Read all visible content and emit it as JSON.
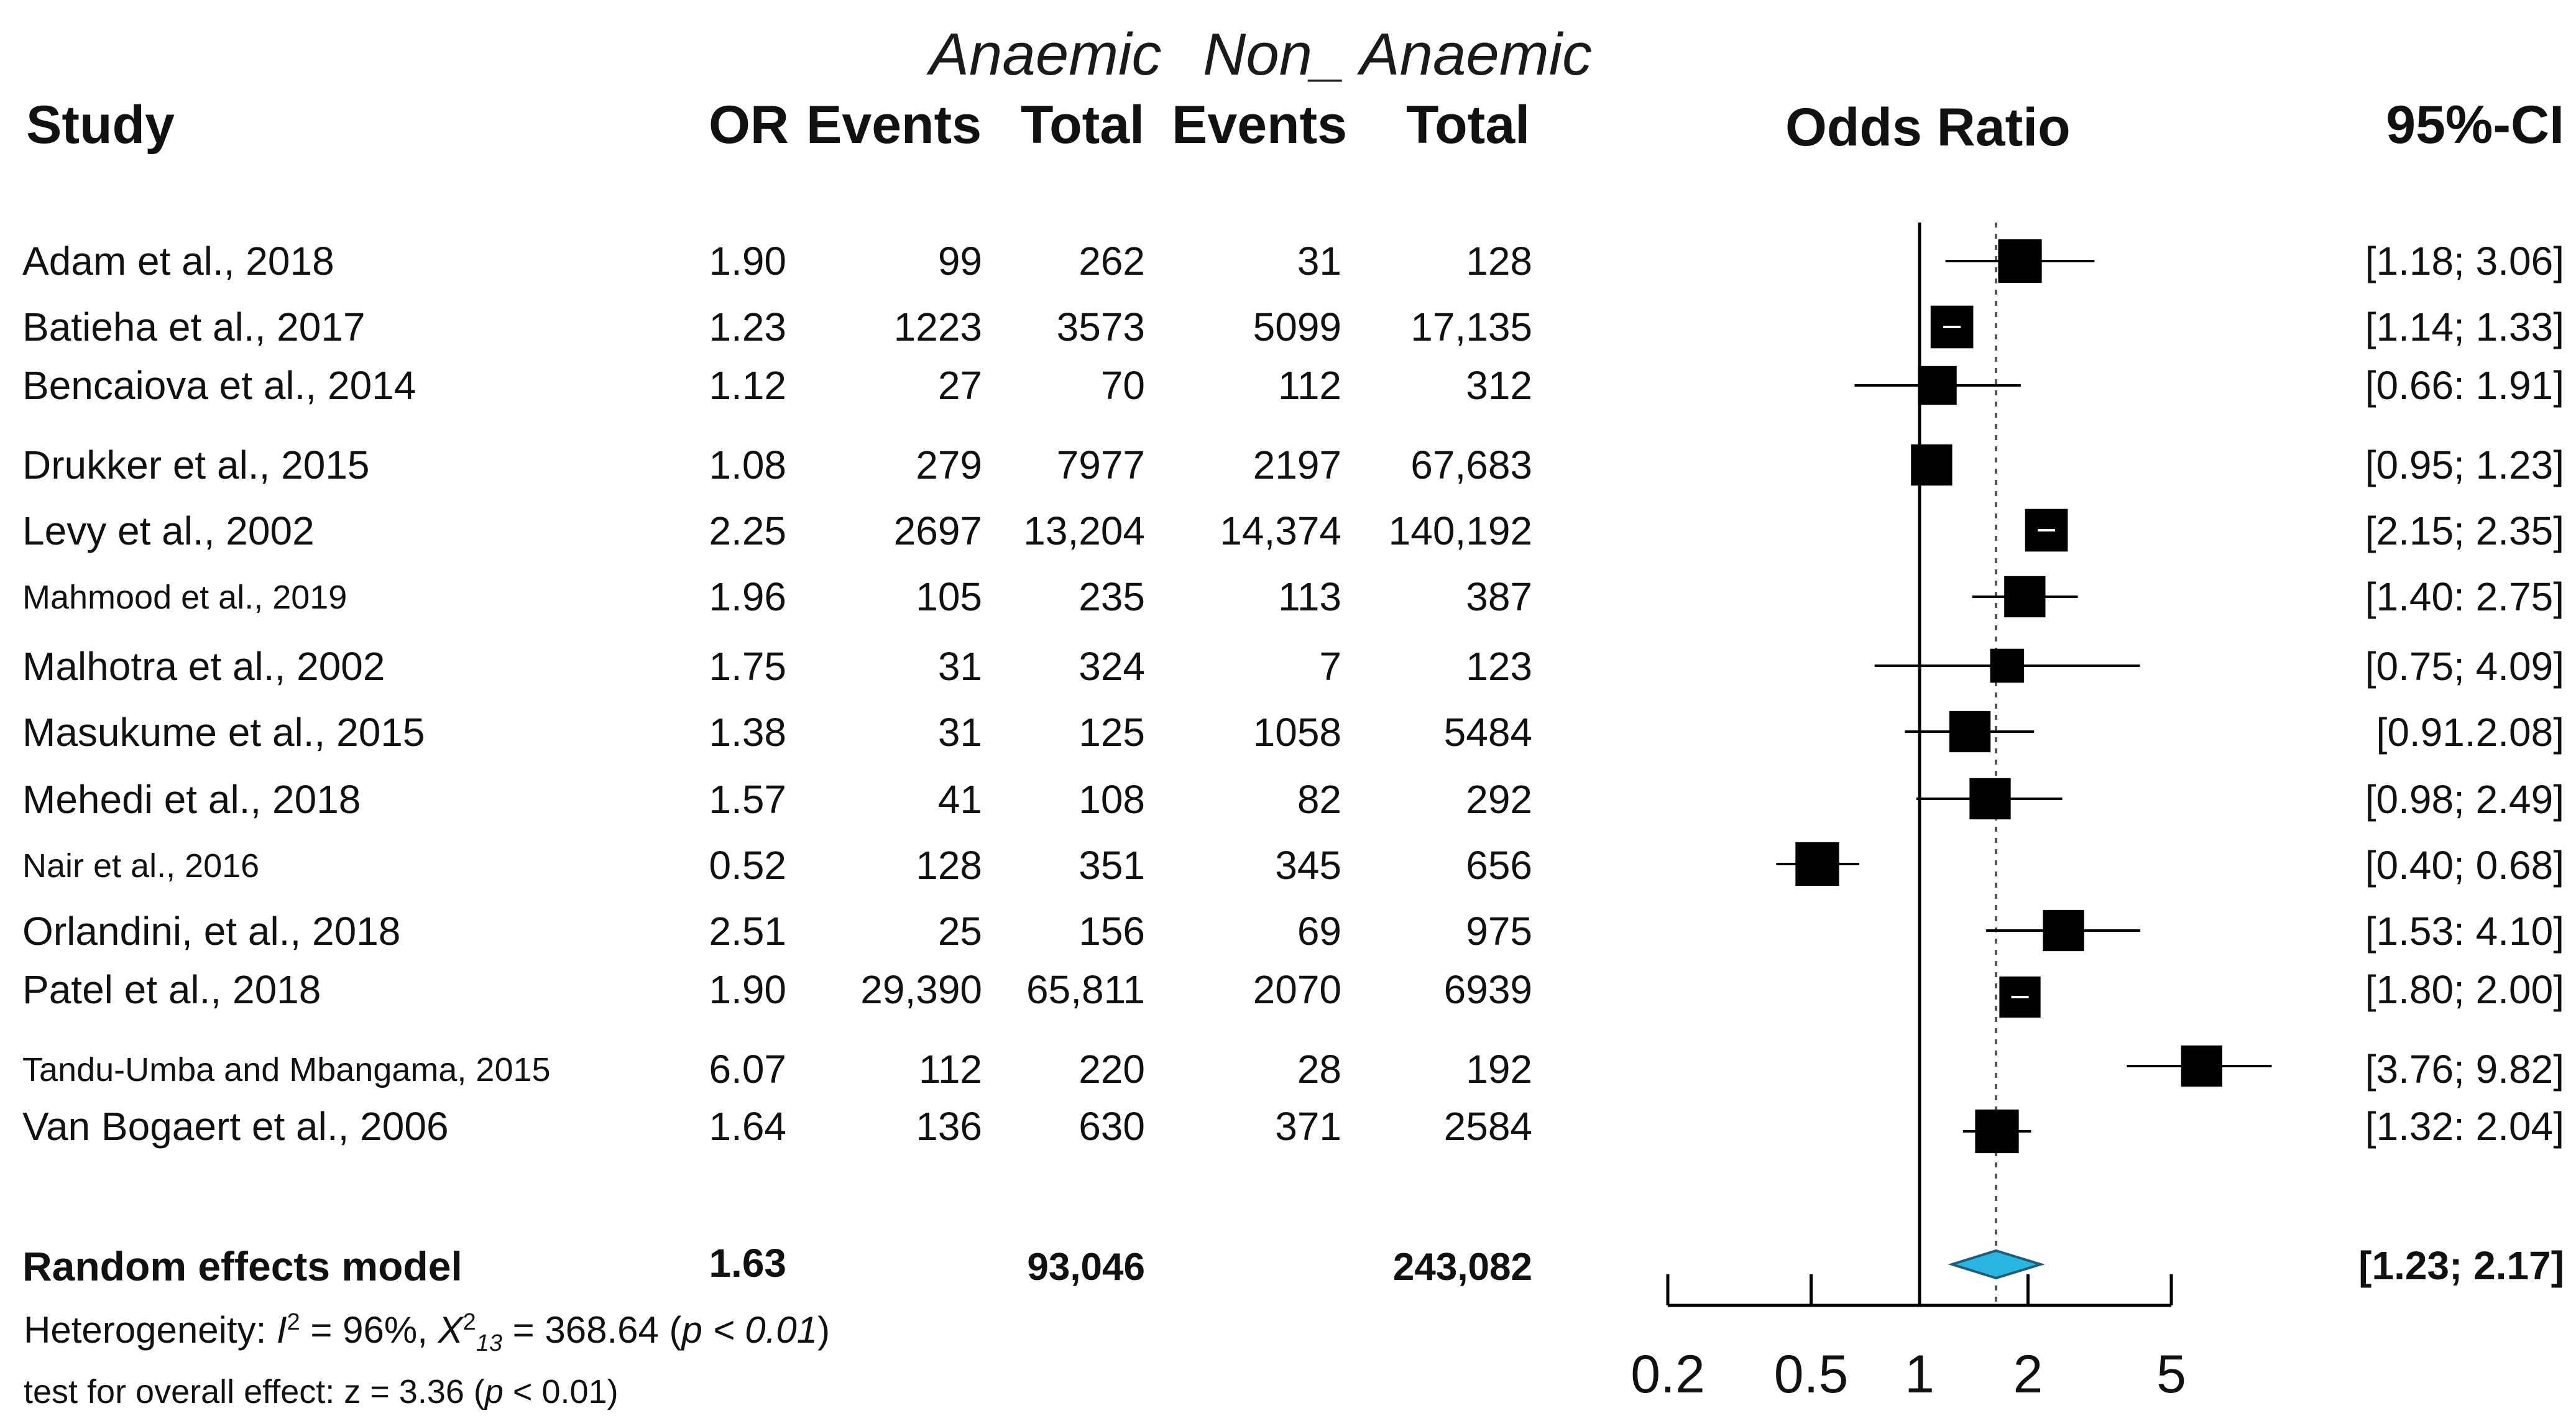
{
  "header": {
    "group_title_anaemic": "Anaemic",
    "group_title_non_anaemic": "Non_ Anaemic",
    "col_study": "Study",
    "col_or": "OR",
    "col_events_1": "Events",
    "col_total_1": "Total",
    "col_events_2": "Events",
    "col_total_2": "Total",
    "col_odds_ratio": "Odds Ratio",
    "col_ci": "95%-CI"
  },
  "studies": [
    {
      "name": "Adam et al., 2018",
      "or": "1.90",
      "ev1": "99",
      "tot1": "262",
      "ev2": "31",
      "tot2": "128",
      "ci": "[1.18; 3.06]"
    },
    {
      "name": "Batieha et al., 2017",
      "or": "1.23",
      "ev1": "1223",
      "tot1": "3573",
      "ev2": "5099",
      "tot2": "17,135",
      "ci": "[1.14; 1.33]"
    },
    {
      "name": "Bencaiova et al., 2014",
      "or": "1.12",
      "ev1": "27",
      "tot1": "70",
      "ev2": "112",
      "tot2": "312",
      "ci": "[0.66: 1.91]"
    },
    {
      "name": "Drukker et al., 2015",
      "or": "1.08",
      "ev1": "279",
      "tot1": "7977",
      "ev2": "2197",
      "tot2": "67,683",
      "ci": "[0.95; 1.23]"
    },
    {
      "name": "Levy et al., 2002",
      "or": "2.25",
      "ev1": "2697",
      "tot1": "13,204",
      "ev2": "14,374",
      "tot2": "140,192",
      "ci": "[2.15; 2.35]"
    },
    {
      "name": "Mahmood et al., 2019",
      "or": "1.96",
      "ev1": "105",
      "tot1": "235",
      "ev2": "113",
      "tot2": "387",
      "ci": "[1.40: 2.75]"
    },
    {
      "name": "Malhotra et al., 2002",
      "or": "1.75",
      "ev1": "31",
      "tot1": "324",
      "ev2": "7",
      "tot2": "123",
      "ci": "[0.75; 4.09]"
    },
    {
      "name": "Masukume et al., 2015",
      "or": "1.38",
      "ev1": "31",
      "tot1": "125",
      "ev2": "1058",
      "tot2": "5484",
      "ci": "[0.91.2.08]"
    },
    {
      "name": "Mehedi et al., 2018",
      "or": "1.57",
      "ev1": "41",
      "tot1": "108",
      "ev2": "82",
      "tot2": "292",
      "ci": "[0.98; 2.49]"
    },
    {
      "name": "Nair et al., 2016",
      "or": "0.52",
      "ev1": "128",
      "tot1": "351",
      "ev2": "345",
      "tot2": "656",
      "ci": "[0.40; 0.68]"
    },
    {
      "name": "Orlandini, et al., 2018",
      "or": "2.51",
      "ev1": "25",
      "tot1": "156",
      "ev2": "69",
      "tot2": "975",
      "ci": "[1.53: 4.10]"
    },
    {
      "name": "Patel et al., 2018",
      "or": "1.90",
      "ev1": "29,390",
      "tot1": "65,811",
      "ev2": "2070",
      "tot2": "6939",
      "ci": "[1.80; 2.00]"
    },
    {
      "name": "Tandu-Umba and Mbangama, 2015",
      "or": "6.07",
      "ev1": "112",
      "tot1": "220",
      "ev2": "28",
      "tot2": "192",
      "ci": "[3.76; 9.82]"
    },
    {
      "name": "Van Bogaert et al., 2006",
      "or": "1.64",
      "ev1": "136",
      "tot1": "630",
      "ev2": "371",
      "tot2": "2584",
      "ci": "[1.32: 2.04]"
    }
  ],
  "summary": {
    "label": "Random effects model",
    "or": "1.63",
    "tot1": "93,046",
    "tot2": "243,082",
    "ci": "[1.23; 2.17]",
    "heterogeneity_prefix": "Heterogeneity:",
    "i2_symbol": "I",
    "i2_sup": "2",
    "i2_value": "= 96%,",
    "chi_symbol": "X",
    "chi_sup": "2",
    "chi_sub": "13",
    "chi_value": "= 368.64 (",
    "p_symbol": "p",
    "p_value": "< 0.01",
    "close_paren": ")",
    "overall_prefix": "test for overall effect: z = 3.36 (",
    "overall_p_value": " < 0.01)"
  },
  "colors": {
    "square": "#000000",
    "diamond": "#29b6e3",
    "line": "#000000",
    "dotted": "#555555"
  },
  "chart_data": {
    "type": "forest",
    "title": "Odds Ratio",
    "xscale": "log",
    "xlim": [
      0.2,
      5
    ],
    "ticks": [
      0.2,
      0.5,
      1,
      2,
      5
    ],
    "tick_labels": [
      "0.2",
      "0.5",
      "1",
      "2",
      "5"
    ],
    "null_line": 1,
    "pooled_line": 1.63,
    "points": [
      {
        "study": "Adam et al., 2018",
        "or": 1.9,
        "lo": 1.18,
        "hi": 3.06,
        "weight": 0.9
      },
      {
        "study": "Batieha et al., 2017",
        "or": 1.23,
        "lo": 1.14,
        "hi": 1.33,
        "weight": 0.88
      },
      {
        "study": "Bencaiova et al., 2014",
        "or": 1.12,
        "lo": 0.66,
        "hi": 1.91,
        "weight": 0.8
      },
      {
        "study": "Drukker et al., 2015",
        "or": 1.08,
        "lo": 0.95,
        "hi": 1.23,
        "weight": 0.85
      },
      {
        "study": "Levy et al., 2002",
        "or": 2.25,
        "lo": 2.15,
        "hi": 2.35,
        "weight": 0.88
      },
      {
        "study": "Mahmood et al., 2019",
        "or": 1.96,
        "lo": 1.4,
        "hi": 2.75,
        "weight": 0.85
      },
      {
        "study": "Malhotra et al., 2002",
        "or": 1.75,
        "lo": 0.75,
        "hi": 4.09,
        "weight": 0.7
      },
      {
        "study": "Masukume et al., 2015",
        "or": 1.38,
        "lo": 0.91,
        "hi": 2.08,
        "weight": 0.85
      },
      {
        "study": "Mehedi et al., 2018",
        "or": 1.57,
        "lo": 0.98,
        "hi": 2.49,
        "weight": 0.85
      },
      {
        "study": "Nair et al., 2016",
        "or": 0.52,
        "lo": 0.4,
        "hi": 0.68,
        "weight": 0.9
      },
      {
        "study": "Orlandini, et al., 2018",
        "or": 2.51,
        "lo": 1.53,
        "hi": 4.1,
        "weight": 0.85
      },
      {
        "study": "Patel et al., 2018",
        "or": 1.9,
        "lo": 1.8,
        "hi": 2.0,
        "weight": 0.85
      },
      {
        "study": "Tandu-Umba and Mbangama, 2015",
        "or": 6.07,
        "lo": 3.76,
        "hi": 9.82,
        "weight": 0.85
      },
      {
        "study": "Van Bogaert et al., 2006",
        "or": 1.64,
        "lo": 1.32,
        "hi": 2.04,
        "weight": 0.9
      }
    ],
    "pooled": {
      "or": 1.63,
      "lo": 1.23,
      "hi": 2.17
    }
  }
}
